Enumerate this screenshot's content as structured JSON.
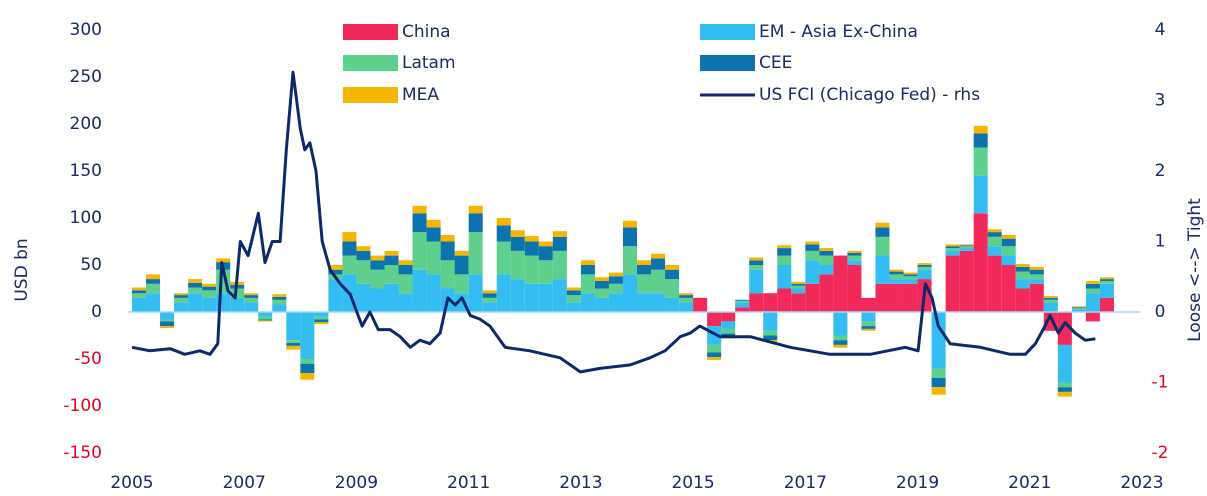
{
  "chart_data": {
    "type": "bar",
    "y_label": "USD bn",
    "y2_label": "Loose <--> Tight",
    "xlim": [
      2005,
      2023
    ],
    "xticks": [
      2005,
      2007,
      2009,
      2011,
      2013,
      2015,
      2017,
      2019,
      2021,
      2023
    ],
    "ylim": [
      -150,
      300
    ],
    "yticks": [
      -150,
      -100,
      -50,
      0,
      50,
      100,
      150,
      200,
      250,
      300
    ],
    "y2lim": [
      -2,
      4
    ],
    "y2ticks": [
      -2,
      -1,
      0,
      1,
      2,
      3,
      4
    ],
    "negative_tick_color": "#e8001c",
    "x": [
      2005,
      2005.25,
      2005.5,
      2005.75,
      2006,
      2006.25,
      2006.5,
      2006.75,
      2007,
      2007.25,
      2007.5,
      2007.75,
      2008,
      2008.25,
      2008.5,
      2008.75,
      2009,
      2009.25,
      2009.5,
      2009.75,
      2010,
      2010.25,
      2010.5,
      2010.75,
      2011,
      2011.25,
      2011.5,
      2011.75,
      2012,
      2012.25,
      2012.5,
      2012.75,
      2013,
      2013.25,
      2013.5,
      2013.75,
      2014,
      2014.25,
      2014.5,
      2014.75,
      2015,
      2015.25,
      2015.5,
      2015.75,
      2016,
      2016.25,
      2016.5,
      2016.75,
      2017,
      2017.25,
      2017.5,
      2017.75,
      2018,
      2018.25,
      2018.5,
      2018.75,
      2019,
      2019.25,
      2019.5,
      2019.75,
      2020,
      2020.25,
      2020.5,
      2020.75,
      2021,
      2021.25,
      2021.5,
      2021.75,
      2022,
      2022.25
    ],
    "series": [
      {
        "name": "China",
        "color": "#f2295b",
        "values": [
          0,
          0,
          0,
          0,
          0,
          0,
          0,
          0,
          0,
          0,
          0,
          0,
          0,
          0,
          0,
          0,
          0,
          0,
          0,
          0,
          0,
          0,
          0,
          0,
          0,
          0,
          0,
          0,
          0,
          0,
          0,
          0,
          0,
          0,
          0,
          0,
          0,
          0,
          0,
          0,
          15,
          -15,
          -10,
          5,
          20,
          20,
          25,
          20,
          30,
          40,
          60,
          50,
          15,
          30,
          30,
          30,
          35,
          0,
          60,
          65,
          105,
          60,
          50,
          25,
          30,
          -20,
          -35,
          0,
          -10,
          15
        ]
      },
      {
        "name": "EM - Asia Ex-China",
        "color": "#33bdf2",
        "values": [
          15,
          20,
          -8,
          10,
          20,
          15,
          20,
          15,
          10,
          -5,
          8,
          -30,
          -50,
          -5,
          35,
          40,
          30,
          25,
          30,
          20,
          45,
          40,
          25,
          20,
          40,
          10,
          40,
          35,
          30,
          30,
          35,
          10,
          20,
          15,
          20,
          40,
          20,
          20,
          15,
          10,
          0,
          -20,
          -8,
          5,
          25,
          -20,
          25,
          5,
          25,
          10,
          -25,
          5,
          -10,
          30,
          5,
          5,
          10,
          -60,
          5,
          3,
          40,
          10,
          10,
          10,
          5,
          10,
          -40,
          3,
          20,
          15
        ]
      },
      {
        "name": "Latam",
        "color": "#5ecf8c",
        "values": [
          5,
          10,
          -2,
          5,
          6,
          8,
          25,
          10,
          5,
          -3,
          5,
          -3,
          -5,
          -3,
          5,
          20,
          25,
          20,
          20,
          20,
          40,
          35,
          30,
          20,
          45,
          5,
          35,
          30,
          30,
          25,
          30,
          8,
          20,
          10,
          10,
          30,
          20,
          25,
          20,
          5,
          0,
          -8,
          -5,
          2,
          5,
          -5,
          10,
          3,
          10,
          10,
          -5,
          5,
          -5,
          20,
          5,
          3,
          3,
          -10,
          3,
          2,
          30,
          10,
          10,
          8,
          5,
          3,
          -5,
          1,
          5,
          3
        ]
      },
      {
        "name": "CEE",
        "color": "#0b74ae",
        "values": [
          3,
          5,
          -5,
          3,
          5,
          4,
          8,
          4,
          3,
          -1,
          3,
          -3,
          -10,
          -3,
          5,
          15,
          10,
          10,
          10,
          10,
          20,
          15,
          20,
          20,
          20,
          5,
          17,
          15,
          15,
          15,
          15,
          5,
          10,
          8,
          8,
          20,
          10,
          12,
          10,
          3,
          0,
          -5,
          -3,
          1,
          5,
          -5,
          8,
          2,
          7,
          5,
          -5,
          3,
          -3,
          10,
          3,
          2,
          2,
          -10,
          2,
          1,
          15,
          5,
          8,
          5,
          5,
          2,
          -5,
          1,
          5,
          2
        ]
      },
      {
        "name": "MEA",
        "color": "#f6b600",
        "values": [
          3,
          5,
          -2,
          2,
          4,
          3,
          4,
          3,
          2,
          -1,
          3,
          -4,
          -7,
          -2,
          5,
          10,
          5,
          5,
          5,
          5,
          8,
          8,
          7,
          5,
          8,
          3,
          8,
          7,
          6,
          5,
          6,
          3,
          5,
          4,
          4,
          7,
          5,
          5,
          5,
          2,
          0,
          -3,
          -2,
          0,
          3,
          -2,
          3,
          2,
          3,
          3,
          -3,
          2,
          -2,
          5,
          2,
          2,
          2,
          -8,
          2,
          1,
          8,
          3,
          4,
          3,
          3,
          2,
          -5,
          1,
          3,
          2
        ]
      }
    ],
    "line": {
      "name": "US FCI (Chicago Fed) - rhs",
      "color": "#0c2a6b",
      "axis": "y2",
      "x": [
        2005,
        2005.32,
        2005.68,
        2005.94,
        2006.21,
        2006.39,
        2006.53,
        2006.6,
        2006.71,
        2006.84,
        2006.93,
        2007.07,
        2007.25,
        2007.37,
        2007.5,
        2007.64,
        2007.75,
        2007.87,
        2008,
        2008.08,
        2008.17,
        2008.28,
        2008.39,
        2008.53,
        2008.71,
        2008.89,
        2009.1,
        2009.24,
        2009.39,
        2009.6,
        2009.78,
        2009.96,
        2010.13,
        2010.31,
        2010.49,
        2010.63,
        2010.76,
        2010.88,
        2011.03,
        2011.2,
        2011.38,
        2011.65,
        2012.09,
        2012.63,
        2012.99,
        2013.34,
        2013.88,
        2014.23,
        2014.5,
        2014.77,
        2014.95,
        2015.12,
        2015.48,
        2016.02,
        2016.73,
        2017.44,
        2018.16,
        2018.78,
        2019.01,
        2019.14,
        2019.26,
        2019.37,
        2019.58,
        2020.12,
        2020.65,
        2020.92,
        2021.1,
        2021.27,
        2021.36,
        2021.51,
        2021.63,
        2021.81,
        2021.99,
        2022.17
      ],
      "values": [
        -0.5,
        -0.55,
        -0.52,
        -0.6,
        -0.55,
        -0.6,
        -0.45,
        0.7,
        0.3,
        0.2,
        1.0,
        0.8,
        1.4,
        0.7,
        1.0,
        1.0,
        2.3,
        3.4,
        2.6,
        2.3,
        2.4,
        2.0,
        1.0,
        0.6,
        0.4,
        0.25,
        -0.2,
        0.0,
        -0.25,
        -0.25,
        -0.35,
        -0.5,
        -0.4,
        -0.45,
        -0.3,
        0.2,
        0.1,
        0.2,
        -0.05,
        -0.1,
        -0.2,
        -0.5,
        -0.55,
        -0.65,
        -0.85,
        -0.8,
        -0.75,
        -0.65,
        -0.55,
        -0.35,
        -0.3,
        -0.2,
        -0.35,
        -0.35,
        -0.5,
        -0.6,
        -0.6,
        -0.5,
        -0.55,
        0.4,
        0.2,
        -0.2,
        -0.45,
        -0.5,
        -0.6,
        -0.6,
        -0.45,
        -0.2,
        -0.05,
        -0.3,
        -0.15,
        -0.3,
        -0.4,
        -0.38
      ]
    }
  }
}
